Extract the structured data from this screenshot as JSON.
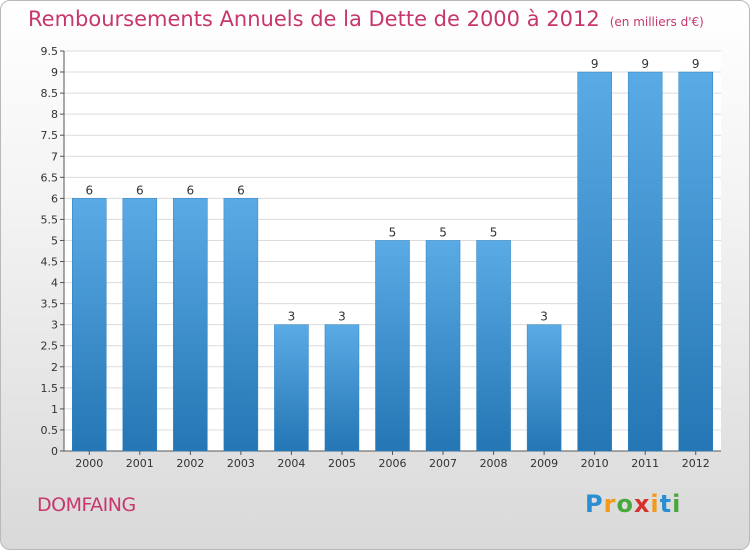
{
  "title": "Remboursements Annuels de la Dette de 2000 à 2012",
  "subtitle": "(en milliers d'€)",
  "commune": "DOMFAING",
  "logo": {
    "letters": [
      "P",
      "r",
      "o",
      "x",
      "i",
      "t",
      "i"
    ],
    "colors": [
      "#2a8fd0",
      "#f29a1a",
      "#49a83b",
      "#d6322c",
      "#f29a1a",
      "#2a8fd0",
      "#49a83b"
    ]
  },
  "colors": {
    "bar": "#4d9fdc",
    "title": "#c8366e"
  },
  "chart_data": {
    "type": "bar",
    "categories": [
      "2000",
      "2001",
      "2002",
      "2003",
      "2004",
      "2005",
      "2006",
      "2007",
      "2008",
      "2009",
      "2010",
      "2011",
      "2012"
    ],
    "values": [
      6,
      6,
      6,
      6,
      3,
      3,
      5,
      5,
      5,
      3,
      9,
      9,
      9
    ],
    "data_labels": [
      "6",
      "6",
      "6",
      "6",
      "3",
      "3",
      "5",
      "5",
      "5",
      "3",
      "9",
      "9",
      "9"
    ],
    "yticks": [
      "0",
      "0.5",
      "1",
      "1.5",
      "2",
      "2.5",
      "3",
      "3.5",
      "4",
      "4.5",
      "5",
      "5.5",
      "6",
      "6.5",
      "7",
      "7.5",
      "8",
      "8.5",
      "9",
      "9.5"
    ],
    "ylim": [
      0,
      9.5
    ],
    "grid": true
  }
}
